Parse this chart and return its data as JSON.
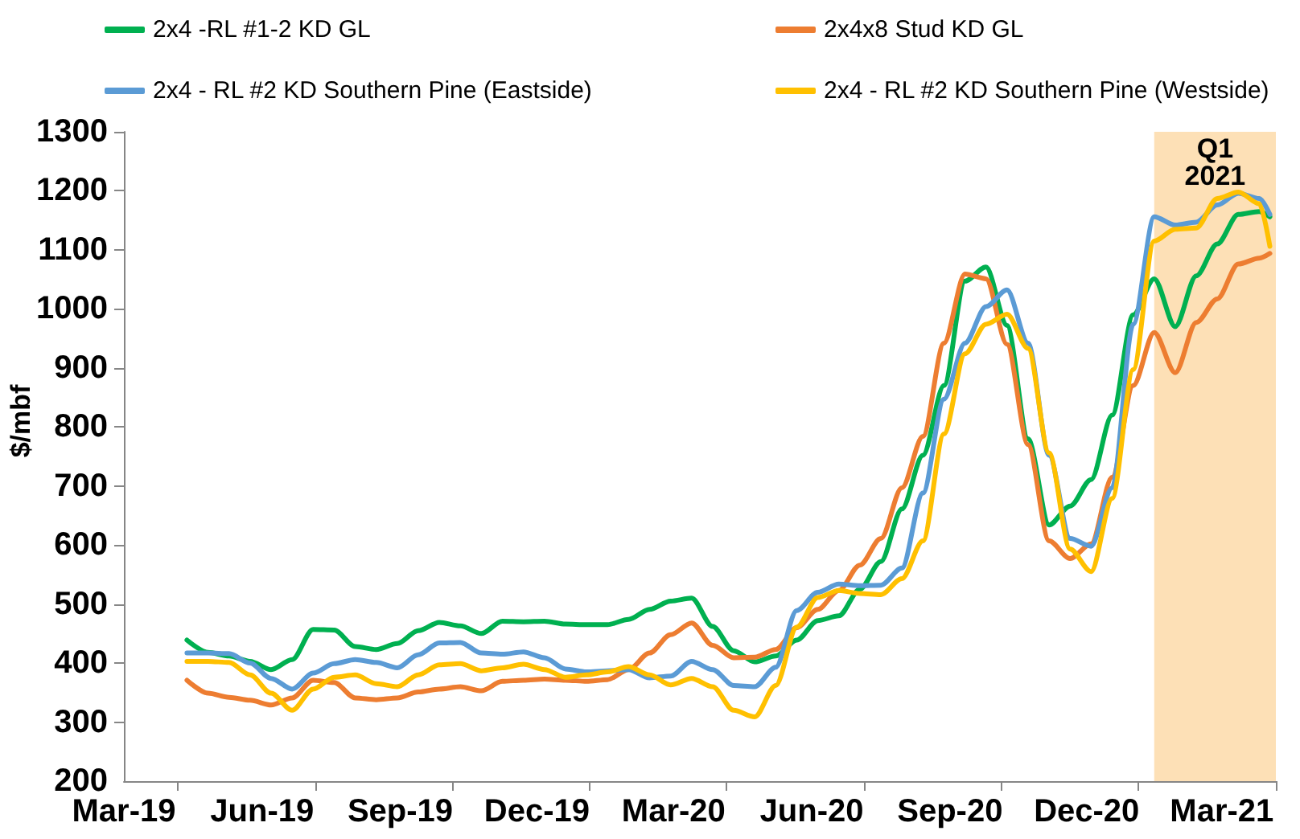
{
  "chart_data": {
    "type": "line",
    "ylabel": "$/mbf",
    "x": [
      "2019-04-12",
      "2019-04-26",
      "2019-05-10",
      "2019-05-24",
      "2019-06-07",
      "2019-06-21",
      "2019-07-05",
      "2019-07-19",
      "2019-08-02",
      "2019-08-16",
      "2019-08-30",
      "2019-09-13",
      "2019-09-27",
      "2019-10-11",
      "2019-10-25",
      "2019-11-08",
      "2019-11-22",
      "2019-12-06",
      "2019-12-20",
      "2020-01-03",
      "2020-01-17",
      "2020-01-31",
      "2020-02-14",
      "2020-02-28",
      "2020-03-13",
      "2020-03-27",
      "2020-04-10",
      "2020-04-24",
      "2020-05-08",
      "2020-05-22",
      "2020-06-05",
      "2020-06-19",
      "2020-07-03",
      "2020-07-17",
      "2020-07-31",
      "2020-08-14",
      "2020-08-28",
      "2020-09-11",
      "2020-09-25",
      "2020-10-09",
      "2020-10-23",
      "2020-11-06",
      "2020-11-20",
      "2020-12-04",
      "2020-12-18",
      "2021-01-01",
      "2021-01-15",
      "2021-01-29",
      "2021-02-12",
      "2021-02-26",
      "2021-03-12",
      "2021-03-26",
      "2021-04-02"
    ],
    "series": [
      {
        "name": "2x4 -RL #1-2 KD GL",
        "color": "#00b050",
        "values": [
          439,
          418,
          412,
          403,
          389,
          406,
          457,
          456,
          428,
          423,
          433,
          455,
          469,
          463,
          450,
          471,
          470,
          471,
          466,
          465,
          465,
          474,
          491,
          505,
          510,
          462,
          421,
          402,
          412,
          439,
          472,
          480,
          525,
          572,
          661,
          752,
          870,
          1047,
          1071,
          972,
          780,
          634,
          666,
          711,
          820,
          990,
          1051,
          970,
          1056,
          1110,
          1160,
          1165,
          1156
        ]
      },
      {
        "name": "2x4x8 Stud KD GL",
        "color": "#ed7d31",
        "values": [
          371,
          349,
          342,
          337,
          329,
          341,
          371,
          367,
          341,
          338,
          341,
          351,
          356,
          360,
          353,
          369,
          371,
          373,
          371,
          369,
          372,
          389,
          417,
          448,
          468,
          430,
          409,
          410,
          423,
          460,
          491,
          523,
          566,
          611,
          697,
          784,
          942,
          1059,
          1051,
          940,
          770,
          607,
          577,
          602,
          715,
          870,
          960,
          892,
          977,
          1017,
          1076,
          1086,
          1094
        ]
      },
      {
        "name": "2x4 - RL #2 KD Southern Pine (Eastside)",
        "color": "#5b9bd5",
        "values": [
          417,
          417,
          416,
          400,
          374,
          356,
          383,
          399,
          406,
          401,
          392,
          414,
          434,
          435,
          417,
          415,
          419,
          409,
          390,
          385,
          387,
          389,
          375,
          378,
          403,
          389,
          362,
          360,
          393,
          489,
          520,
          534,
          531,
          532,
          561,
          688,
          847,
          942,
          1004,
          1032,
          942,
          752,
          611,
          598,
          697,
          974,
          1156,
          1142,
          1147,
          1176,
          1196,
          1187,
          1160
        ]
      },
      {
        "name": "2x4 - RL #2 KD Southern Pine (Westside)",
        "color": "#ffc000",
        "values": [
          403,
          403,
          401,
          380,
          349,
          320,
          356,
          376,
          380,
          365,
          360,
          380,
          397,
          399,
          387,
          392,
          398,
          389,
          376,
          380,
          385,
          394,
          380,
          363,
          374,
          360,
          320,
          309,
          362,
          461,
          511,
          523,
          518,
          516,
          543,
          607,
          788,
          924,
          974,
          991,
          933,
          756,
          593,
          555,
          679,
          897,
          1115,
          1135,
          1137,
          1187,
          1198,
          1178,
          1106
        ]
      }
    ],
    "xlim": [
      "2019-03-01",
      "2021-04-06"
    ],
    "xticks": [
      {
        "value": "2019-03-01",
        "label": "Mar-19"
      },
      {
        "value": "2019-04-06",
        "label": null
      },
      {
        "value": "2019-06-01",
        "label": "Jun-19"
      },
      {
        "value": "2019-07-07",
        "label": null
      },
      {
        "value": "2019-09-01",
        "label": "Sep-19"
      },
      {
        "value": "2019-10-06",
        "label": null
      },
      {
        "value": "2019-12-01",
        "label": "Dec-19"
      },
      {
        "value": "2020-01-05",
        "label": null
      },
      {
        "value": "2020-03-01",
        "label": "Mar-20"
      },
      {
        "value": "2020-04-05",
        "label": null
      },
      {
        "value": "2020-06-01",
        "label": "Jun-20"
      },
      {
        "value": "2020-07-06",
        "label": null
      },
      {
        "value": "2020-09-01",
        "label": "Sep-20"
      },
      {
        "value": "2020-10-05",
        "label": null
      },
      {
        "value": "2020-12-01",
        "label": "Dec-20"
      },
      {
        "value": "2021-01-04",
        "label": null
      },
      {
        "value": "2021-03-01",
        "label": "Mar-21"
      },
      {
        "value": "2021-04-06",
        "label": null
      }
    ],
    "ylim": [
      200,
      1300
    ],
    "yticks": [
      200,
      300,
      400,
      500,
      600,
      700,
      800,
      900,
      1000,
      1100,
      1200,
      1300
    ],
    "bands": [
      {
        "axis": "x",
        "from": "2021-01-15",
        "to": "2021-04-06",
        "label": "Q1 2021",
        "color": "#fde0b6"
      }
    ],
    "legend": "top",
    "marker": "none"
  }
}
